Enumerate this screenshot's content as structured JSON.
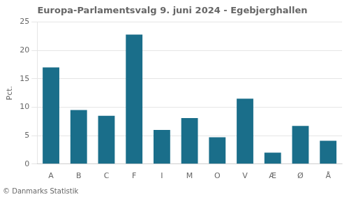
{
  "chart_data": {
    "type": "bar",
    "title": "Europa-Parlamentsvalg 9. juni 2024 - Egebjerghallen",
    "categories": [
      "A",
      "B",
      "C",
      "F",
      "I",
      "M",
      "O",
      "V",
      "Æ",
      "Ø",
      "Å"
    ],
    "values": [
      17.0,
      9.5,
      8.5,
      22.8,
      6.0,
      8.1,
      4.7,
      11.5,
      2.0,
      6.7,
      4.1
    ],
    "color": "#1a6e8a",
    "ylabel": "Pct.",
    "ylim": [
      0,
      25
    ],
    "yticks": [
      0,
      5,
      10,
      15,
      20,
      25
    ],
    "grid": true,
    "annotations": [
      "© Danmarks Statistik"
    ]
  }
}
